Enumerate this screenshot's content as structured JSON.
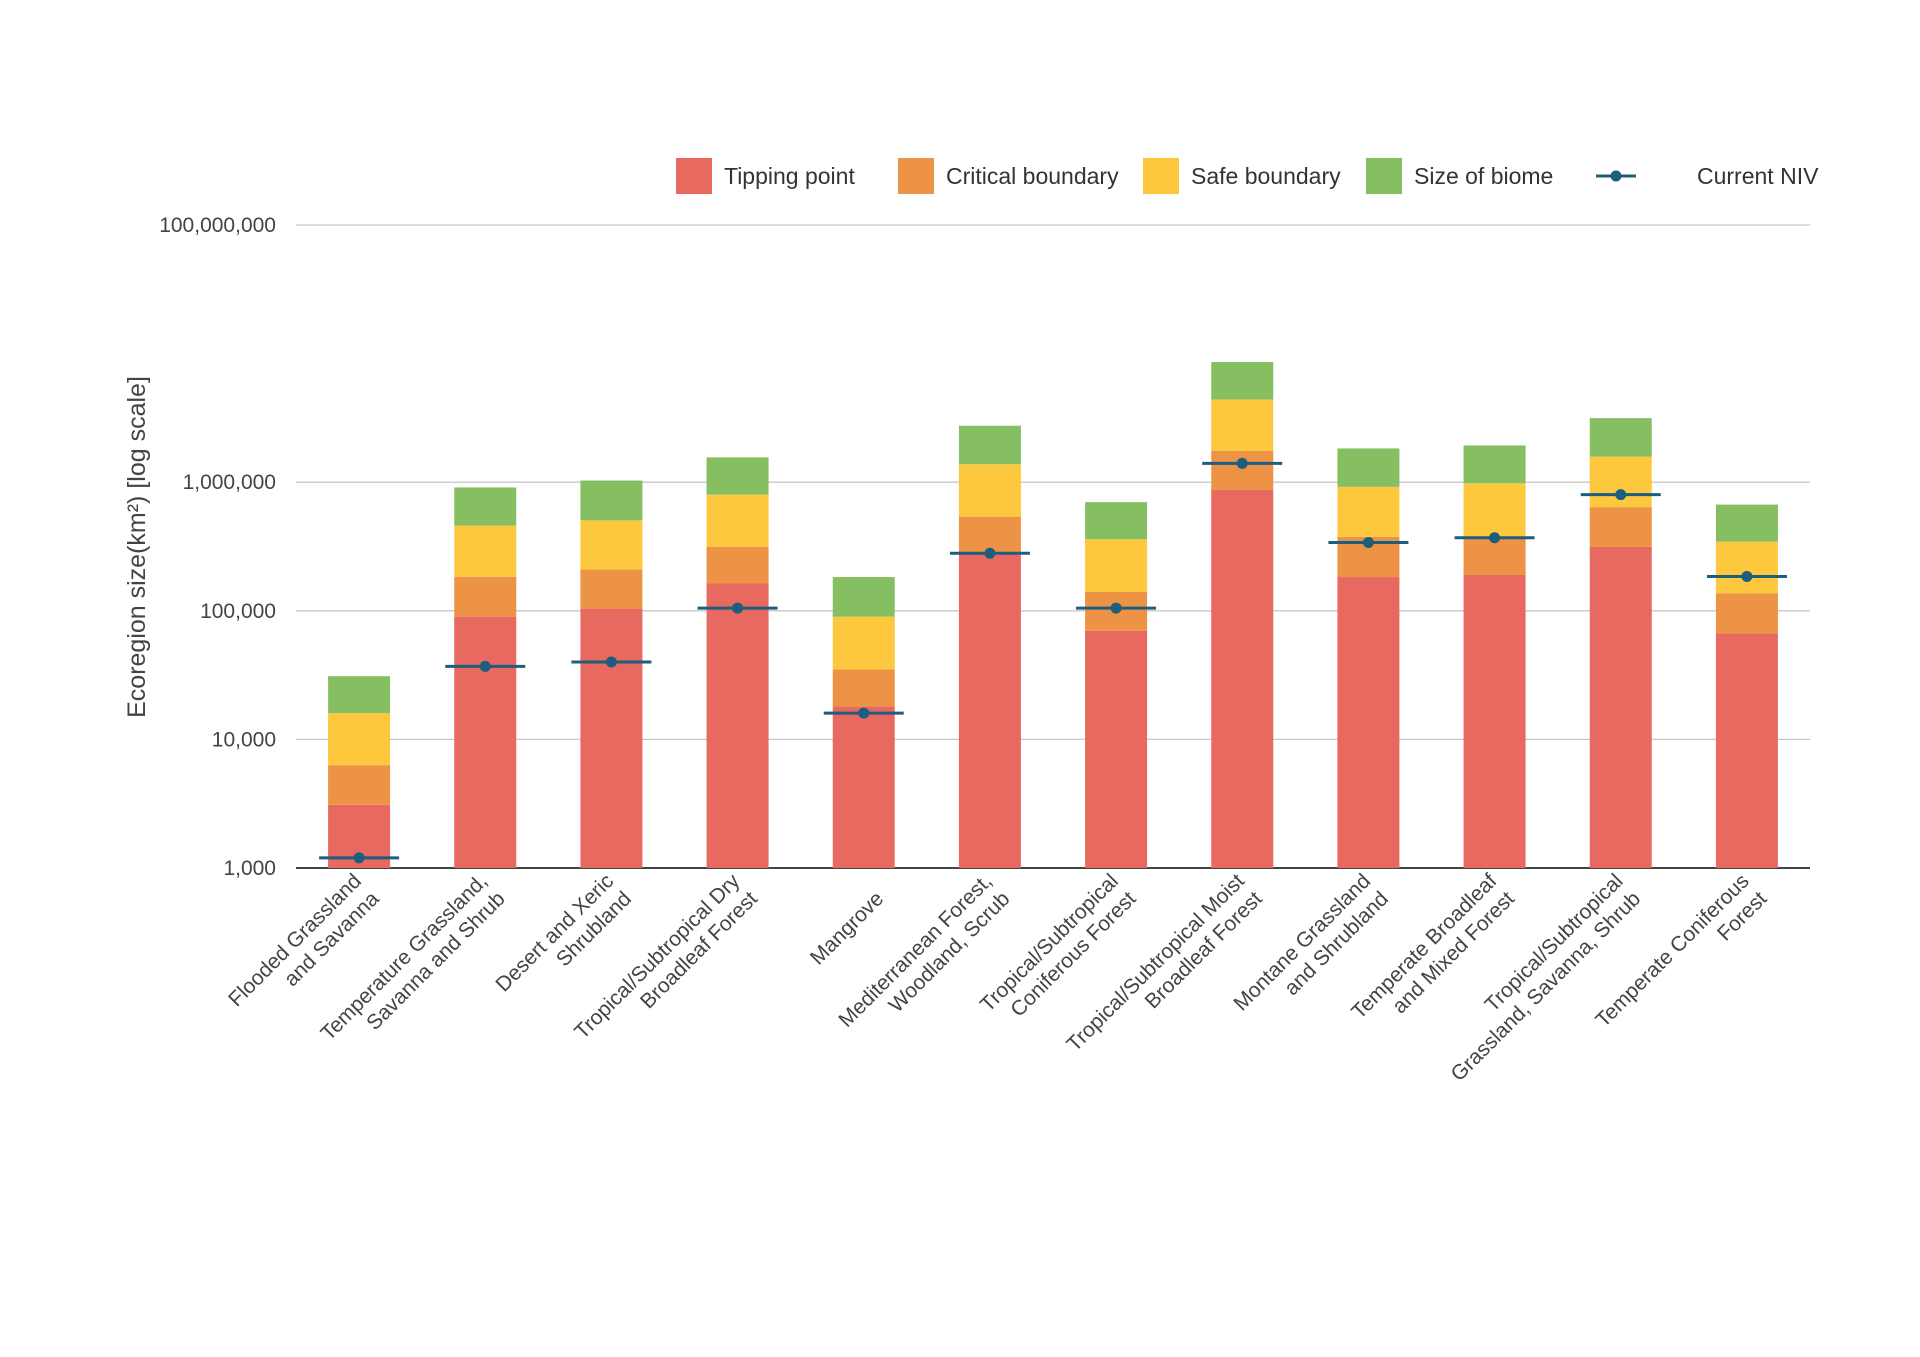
{
  "chart_data": {
    "type": "bar",
    "stacked": true,
    "scale": "log",
    "ylabel": "Ecoregion size(km²) [log scale]",
    "ylim": [
      1000,
      100000000
    ],
    "yticks": [
      1000,
      10000,
      100000,
      1000000,
      100000000
    ],
    "ytick_labels": [
      "1,000",
      "10,000",
      "100,000",
      "1,000,000",
      "100,000,000"
    ],
    "grid": true,
    "legend_position": "top-right",
    "categories": [
      [
        "Flooded Grassland",
        "and Savanna"
      ],
      [
        "Temperature Grassland,",
        "Savanna and Shrub"
      ],
      [
        "Desert and Xeric",
        "Shrubland"
      ],
      [
        "Tropical/Subtropical Dry",
        "Broadleaf Forest"
      ],
      [
        "Mangrove"
      ],
      [
        "Mediterranean Forest,",
        "Woodland, Scrub"
      ],
      [
        "Tropical/Subtropical",
        "Coniferous Forest"
      ],
      [
        "Tropical/Subtropical Moist",
        "Broadleaf Forest"
      ],
      [
        "Montane Grassland",
        "and Shrubland"
      ],
      [
        "Temperate Broadleaf",
        "and Mixed Forest"
      ],
      [
        "Tropical/Subtropical",
        "Grassland, Savanna, Shrub"
      ],
      [
        "Temperate Coniferous",
        "Forest"
      ]
    ],
    "series": [
      {
        "name": "Tipping point",
        "color": "#e8695f",
        "values": [
          3100,
          90000,
          104000,
          163000,
          18000,
          275000,
          70000,
          870000,
          183000,
          190000,
          315000,
          67000
        ]
      },
      {
        "name": "Critical boundary",
        "color": "#ec9345",
        "values": [
          6300,
          184000,
          210000,
          315000,
          35000,
          540000,
          140000,
          1750000,
          376000,
          380000,
          640000,
          137000
        ]
      },
      {
        "name": "Safe boundary",
        "color": "#fdc83e",
        "values": [
          16000,
          460000,
          505000,
          800000,
          90000,
          1380000,
          360000,
          4400000,
          920000,
          980000,
          1580000,
          345000
        ]
      },
      {
        "name": "Size of biome",
        "color": "#86bf62",
        "values": [
          31000,
          910000,
          1030000,
          1560000,
          183000,
          2750000,
          700000,
          8600000,
          1830000,
          1930000,
          3150000,
          670000
        ]
      }
    ],
    "line_series": {
      "name": "Current NIV",
      "color": "#1d5d7e",
      "values": [
        1200,
        37000,
        40000,
        105000,
        16000,
        280000,
        105000,
        1400000,
        340000,
        370000,
        800000,
        185000
      ]
    }
  }
}
